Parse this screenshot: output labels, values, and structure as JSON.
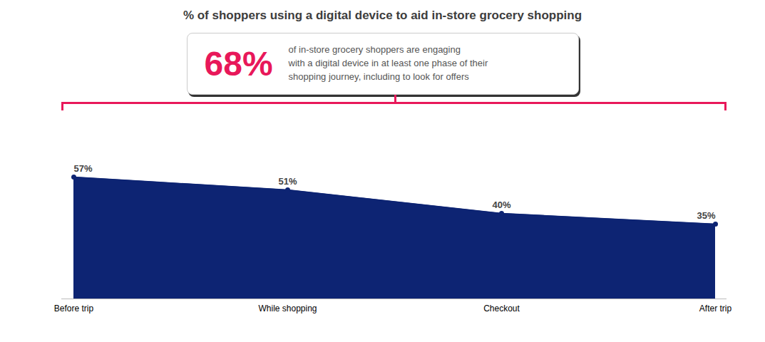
{
  "chart_data": {
    "type": "area",
    "title": "% of shoppers using a digital device to aid in-store grocery shopping",
    "categories": [
      "Before trip",
      "While shopping",
      "Checkout",
      "After trip"
    ],
    "values": [
      57,
      51,
      40,
      35
    ],
    "value_labels": [
      "57%",
      "51%",
      "40%",
      "35%"
    ],
    "data_labels": true,
    "color": "#0d2473",
    "marker": "circle",
    "ylim": [
      0,
      80
    ],
    "tick_labels": "x",
    "grid": false,
    "annotations": [
      {
        "text": "68%",
        "color": "#e8185a"
      },
      {
        "text": "of in-store grocery shoppers are engaging"
      },
      {
        "text": "with a digital device in at least one phase of their"
      },
      {
        "text": "shopping journey, including to look for offers"
      }
    ]
  }
}
